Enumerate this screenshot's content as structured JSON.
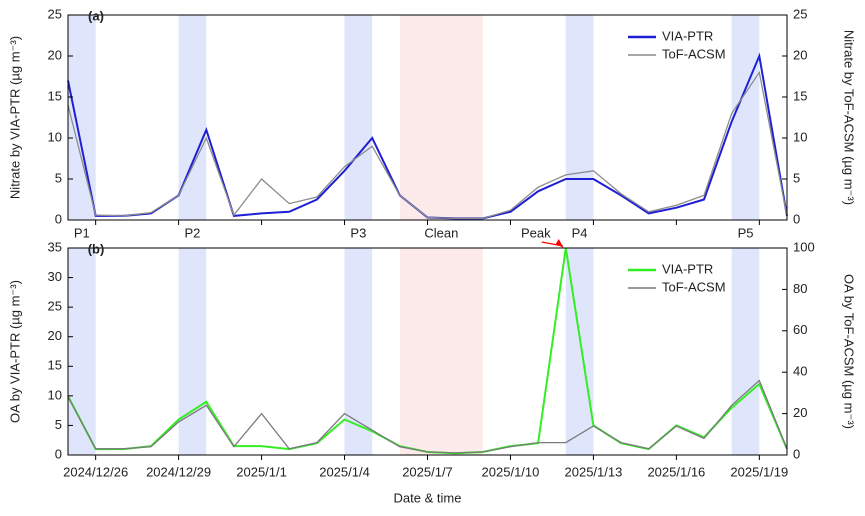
{
  "chart_data": [
    {
      "type": "line",
      "title": "(a)",
      "ylabel": "Nitrate by VIA-PTR (µg m⁻³)",
      "y2label": "Nitrate by ToF-ACSM (µg m⁻³)",
      "x": [
        "2024/12/25",
        "2024/12/26",
        "2024/12/27",
        "2024/12/28",
        "2024/12/29",
        "2024/12/30",
        "2024/12/31",
        "2025/1/1",
        "2025/1/2",
        "2025/1/3",
        "2025/1/4",
        "2025/1/5",
        "2025/1/6",
        "2025/1/7",
        "2025/1/8",
        "2025/1/9",
        "2025/1/10",
        "2025/1/11",
        "2025/1/12",
        "2025/1/13",
        "2025/1/14",
        "2025/1/15",
        "2025/1/16",
        "2025/1/17",
        "2025/1/18",
        "2025/1/19",
        "2025/1/20"
      ],
      "series": [
        {
          "name": "VIA-PTR",
          "color": "#1f1fd6",
          "values": [
            17,
            0.5,
            0.5,
            0.8,
            3,
            11,
            0.5,
            0.8,
            1,
            2.5,
            6,
            10,
            3,
            0.3,
            0.2,
            0.2,
            1,
            3.5,
            5,
            5,
            3,
            0.8,
            1.5,
            2.5,
            12,
            20,
            0.5
          ]
        },
        {
          "name": "ToF-ACSM",
          "color": "#8c8c8c",
          "axis": "y2",
          "values": [
            14,
            0.6,
            0.5,
            0.9,
            3,
            10,
            0.6,
            5,
            2,
            2.8,
            6.5,
            9,
            3,
            0.3,
            0.2,
            0.2,
            1.2,
            4,
            5.5,
            6,
            3.2,
            1,
            1.8,
            3,
            13,
            18,
            0.5
          ]
        }
      ],
      "xlim": [
        "2024/12/25",
        "2025/1/20"
      ],
      "xticks": [
        "2024/12/26",
        "2024/12/29",
        "2025/1/1",
        "2025/1/4",
        "2025/1/7",
        "2025/1/10",
        "2025/1/13",
        "2025/1/16",
        "2025/1/19"
      ],
      "ylim": [
        0,
        25
      ],
      "yticks": [
        0,
        5,
        10,
        15,
        20,
        25
      ],
      "y2lim": [
        0,
        25
      ],
      "y2ticks": [
        0,
        5,
        10,
        15,
        20,
        25
      ],
      "periods": [
        {
          "label": "P1",
          "start": "2024/12/25",
          "end": "2024/12/26",
          "color": "#dfe6fb"
        },
        {
          "label": "P2",
          "start": "2024/12/29",
          "end": "2024/12/30",
          "color": "#dfe6fb"
        },
        {
          "label": "P3",
          "start": "2025/1/4",
          "end": "2025/1/5",
          "color": "#dfe6fb"
        },
        {
          "label": "Clean",
          "start": "2025/1/6",
          "end": "2025/1/9",
          "color": "#fdeaea"
        },
        {
          "label": "P4",
          "start": "2025/1/12",
          "end": "2025/1/13",
          "color": "#dfe6fb"
        },
        {
          "label": "P5",
          "start": "2025/1/18",
          "end": "2025/1/19",
          "color": "#dfe6fb"
        }
      ]
    },
    {
      "type": "line",
      "title": "(b)",
      "ylabel": "OA by VIA-PTR (µg m⁻³)",
      "y2label": "OA by ToF-ACSM (µg m⁻³)",
      "xlabel": "Date & time",
      "x": [
        "2024/12/25",
        "2024/12/26",
        "2024/12/27",
        "2024/12/28",
        "2024/12/29",
        "2024/12/30",
        "2024/12/31",
        "2025/1/1",
        "2025/1/2",
        "2025/1/3",
        "2025/1/4",
        "2025/1/5",
        "2025/1/6",
        "2025/1/7",
        "2025/1/8",
        "2025/1/9",
        "2025/1/10",
        "2025/1/11",
        "2025/1/12",
        "2025/1/13",
        "2025/1/14",
        "2025/1/15",
        "2025/1/16",
        "2025/1/17",
        "2025/1/18",
        "2025/1/19",
        "2025/1/20"
      ],
      "series": [
        {
          "name": "VIA-PTR",
          "color": "#33ee22",
          "values": [
            10,
            1,
            1,
            1.5,
            6,
            9,
            1.5,
            1.5,
            1,
            2,
            6,
            4,
            1.5,
            0.5,
            0.3,
            0.5,
            1.5,
            2,
            35,
            5,
            2,
            1,
            5,
            3,
            8,
            12,
            1
          ]
        },
        {
          "name": "ToF-ACSM",
          "color": "#7a7a7a",
          "axis": "y2",
          "values": [
            28,
            3,
            3,
            4,
            16,
            24,
            4,
            20,
            3,
            6,
            20,
            12,
            4,
            1.5,
            1,
            1.5,
            4,
            6,
            6,
            14,
            6,
            3,
            14,
            8,
            24,
            36,
            3
          ]
        }
      ],
      "xlim": [
        "2024/12/25",
        "2025/1/20"
      ],
      "xticks": [
        "2024/12/26",
        "2024/12/29",
        "2025/1/1",
        "2025/1/4",
        "2025/1/7",
        "2025/1/10",
        "2025/1/13",
        "2025/1/16",
        "2025/1/19"
      ],
      "ylim": [
        0,
        35
      ],
      "yticks": [
        0,
        5,
        10,
        15,
        20,
        25,
        30,
        35
      ],
      "y2lim": [
        0,
        100
      ],
      "y2ticks": [
        0,
        20,
        40,
        60,
        80,
        100
      ],
      "annotations": [
        {
          "text": "Peak",
          "x": "2025/1/12",
          "y": 35,
          "color": "#ff0000"
        }
      ]
    }
  ]
}
